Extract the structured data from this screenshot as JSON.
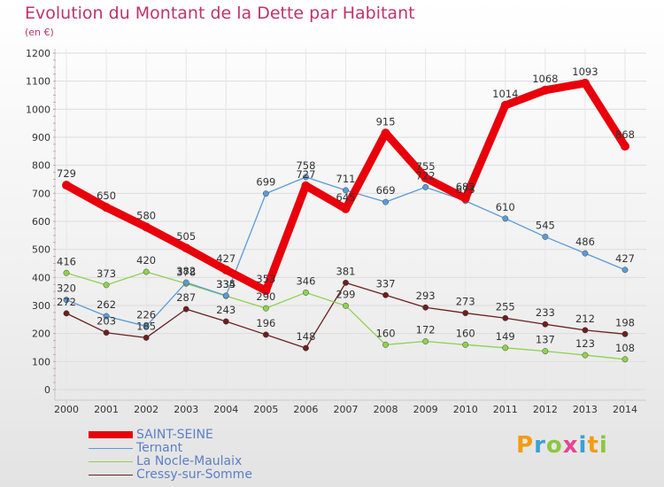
{
  "title": "Evolution du Montant de la Dette par Habitant",
  "subtitle": "(en €)",
  "logo": [
    "P",
    "r",
    "o",
    "x",
    "i",
    "t",
    "i"
  ],
  "logo_colors": [
    "#f39c12",
    "#3aa0d8",
    "#8dc63f",
    "#e84393",
    "#3aa0d8",
    "#f39c12",
    "#8dc63f"
  ],
  "chart_data": {
    "type": "line",
    "title": "Evolution du Montant de la Dette par Habitant",
    "ylabel": "(en €)",
    "xlabel": "",
    "x": [
      "2000",
      "2001",
      "2002",
      "2003",
      "2004",
      "2005",
      "2006",
      "2007",
      "2008",
      "2009",
      "2010",
      "2011",
      "2012",
      "2013",
      "2014"
    ],
    "ylim": [
      0,
      1200
    ],
    "yticks": [
      "0",
      "100",
      "200",
      "300",
      "400",
      "500",
      "600",
      "700",
      "800",
      "900",
      "1000",
      "1100",
      "1200"
    ],
    "grid": true,
    "legend_position": "bottom-left",
    "series": [
      {
        "name": "SAINT-SEINE",
        "color": "#e8000b",
        "values": [
          729,
          650,
          580,
          505,
          427,
          353,
          727,
          645,
          915,
          755,
          682,
          1014,
          1068,
          1093,
          868
        ]
      },
      {
        "name": "Ternant",
        "color": "#5b9bd5",
        "values": [
          320,
          262,
          226,
          382,
          335,
          699,
          758,
          711,
          669,
          722,
          673,
          610,
          545,
          486,
          427
        ]
      },
      {
        "name": "La Nocle-Maulaix",
        "color": "#8fd14f",
        "values": [
          416,
          373,
          420,
          378,
          334,
          290,
          346,
          299,
          160,
          172,
          160,
          149,
          137,
          123,
          108
        ]
      },
      {
        "name": "Cressy-sur-Somme",
        "color": "#6b1f1f",
        "values": [
          272,
          203,
          185,
          287,
          243,
          196,
          148,
          381,
          337,
          293,
          273,
          255,
          233,
          212,
          198
        ]
      }
    ]
  }
}
